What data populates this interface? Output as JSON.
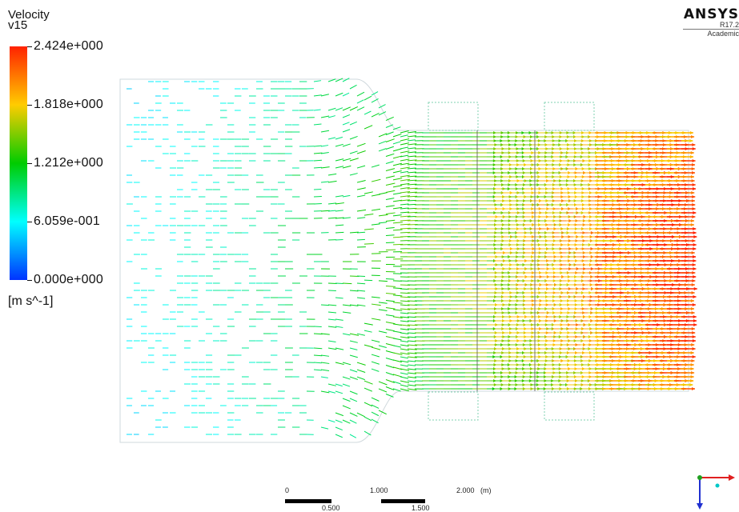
{
  "chart_data": {
    "type": "vector",
    "legend": {
      "title": "Velocity",
      "subtitle": "v15",
      "unit": "[m s^-1]",
      "range": [
        0.0,
        2.424
      ],
      "ticks": [
        {
          "value": 2.424,
          "label": "2.424e+000"
        },
        {
          "value": 1.818,
          "label": "1.818e+000"
        },
        {
          "value": 1.212,
          "label": "1.212e+000"
        },
        {
          "value": 0.6059,
          "label": "6.059e-001"
        },
        {
          "value": 0.0,
          "label": "0.000e+000"
        }
      ],
      "colors": [
        "#ff2200",
        "#ffcc00",
        "#00cc00",
        "#00ffff",
        "#0033ff"
      ]
    },
    "scale_bar": {
      "unit": "(m)",
      "labels_top": [
        "0",
        "1.000",
        "2.000"
      ],
      "labels_bottom": [
        "0.500",
        "1.500"
      ]
    },
    "flow": {
      "direction": "left-to-right",
      "inlet_speed": 0.6,
      "outlet_speed": 2.4
    }
  },
  "brand": {
    "name": "ANSYS",
    "revision": "R17.2",
    "edition": "Academic"
  }
}
